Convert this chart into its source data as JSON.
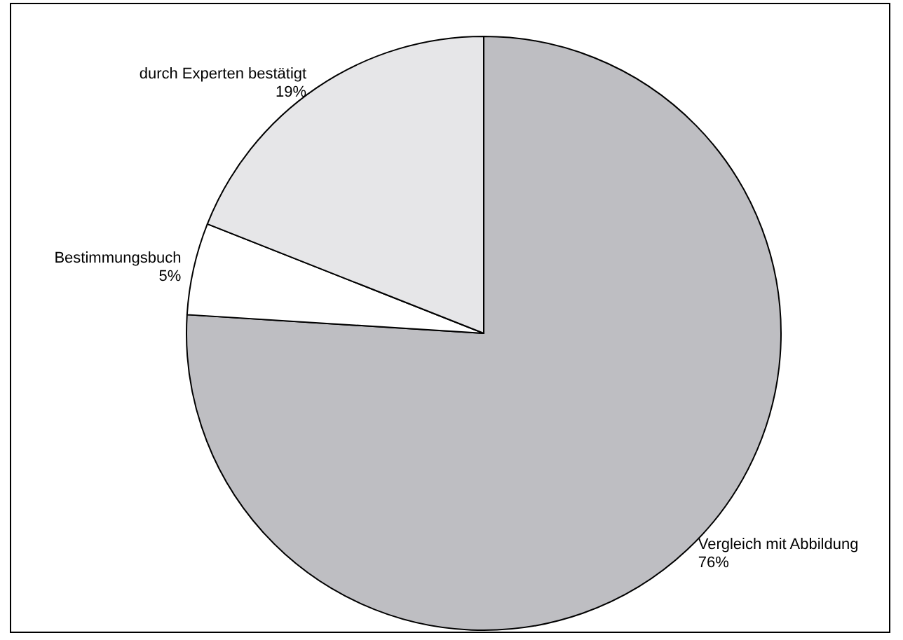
{
  "chart_data": {
    "type": "pie",
    "categories": [
      "Vergleich mit Abbildung",
      "Bestimmungsbuch",
      "durch Experten bestätigt"
    ],
    "values": [
      76,
      5,
      19
    ],
    "colors": [
      "#bebec2",
      "#ffffff",
      "#e6e6e8"
    ],
    "value_labels": [
      "76%",
      "5%",
      "19%"
    ],
    "legend": false
  }
}
